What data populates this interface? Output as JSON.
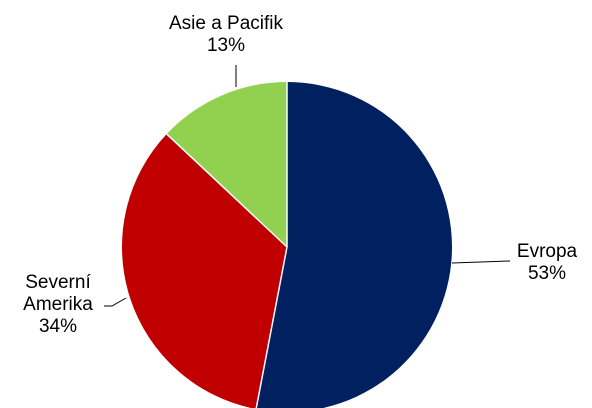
{
  "chart_data": {
    "type": "pie",
    "start_angle_deg": 0,
    "direction": "clockwise",
    "legend": "none",
    "slices": [
      {
        "label_lines": [
          "Evropa"
        ],
        "value": 53,
        "value_label": "53%",
        "color": "#002060"
      },
      {
        "label_lines": [
          "Severní",
          "Amerika"
        ],
        "value": 34,
        "value_label": "34%",
        "color": "#C00000"
      },
      {
        "label_lines": [
          "Asie a Pacifik"
        ],
        "value": 13,
        "value_label": "13%",
        "color": "#92D050"
      }
    ]
  }
}
